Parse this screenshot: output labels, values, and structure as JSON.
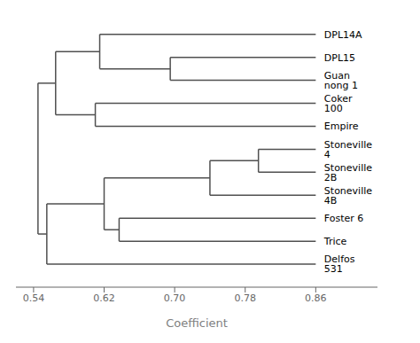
{
  "chart_data": {
    "type": "dendrogram",
    "title": "",
    "xlabel": "Coefficient",
    "xlim": [
      0.52,
      0.93
    ],
    "ylim": [
      0.0,
      11.8
    ],
    "xticks": [
      0.54,
      0.62,
      {
        "value": 0.7,
        "label": "0.70"
      },
      0.78,
      0.86
    ],
    "color": "#505050",
    "leaf_value": 0.86,
    "tree": {
      "value": 0.545,
      "children": [
        {
          "value": 0.565,
          "children": [
            {
              "value": 0.615,
              "children": [
                "DPL14A",
                {
                  "value": 0.695,
                  "children": [
                    "DPL15",
                    "Guan nong 1"
                  ]
                }
              ]
            },
            {
              "value": 0.61,
              "children": [
                "Coker 100",
                "Empire"
              ]
            }
          ]
        },
        {
          "value": 0.555,
          "children": [
            {
              "value": 0.62,
              "children": [
                {
                  "value": 0.74,
                  "children": [
                    {
                      "value": 0.795,
                      "children": [
                        "Stoneville 4",
                        "Stoneville 2B"
                      ]
                    },
                    "Stoneville 4B"
                  ]
                },
                {
                  "value": 0.637,
                  "children": [
                    "Foster 6",
                    "Trice"
                  ]
                }
              ]
            },
            "Delfos 531"
          ]
        }
      ]
    }
  }
}
